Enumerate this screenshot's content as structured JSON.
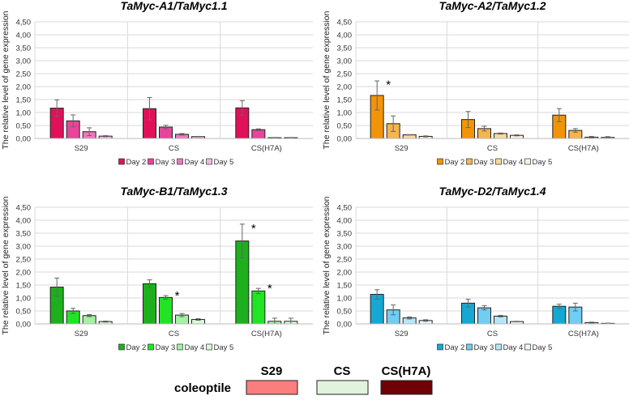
{
  "chart_data": [
    {
      "type": "bar",
      "title": "TaMyc-A1/TaMyc1.1",
      "ylabel": "The relative level of gene expression",
      "ylim": [
        0,
        4.5
      ],
      "yticks": [
        "0,00",
        "0,50",
        "1,00",
        "1,50",
        "2,00",
        "2,50",
        "3,00",
        "3,50",
        "4,00",
        "4,50"
      ],
      "categories": [
        "S29",
        "CS",
        "CS(H7A)"
      ],
      "series": [
        {
          "name": "Day 2",
          "color": "#e2105a",
          "values": [
            1.17,
            1.15,
            1.18
          ],
          "errors": [
            0.32,
            0.43,
            0.28
          ]
        },
        {
          "name": "Day 3",
          "color": "#e8449a",
          "values": [
            0.68,
            0.44,
            0.34
          ],
          "errors": [
            0.23,
            0.07,
            0.03
          ]
        },
        {
          "name": "Day 4",
          "color": "#ef78bf",
          "values": [
            0.26,
            0.16,
            0.03
          ],
          "errors": [
            0.15,
            0.03,
            0.01
          ]
        },
        {
          "name": "Day 5",
          "color": "#f5b8dc",
          "values": [
            0.09,
            0.07,
            0.03
          ],
          "errors": [
            0.02,
            0.01,
            0.01
          ]
        }
      ],
      "significance": []
    },
    {
      "type": "bar",
      "title": "TaMyc-A2/TaMyc1.2",
      "ylabel": "The relative level of gene expression",
      "ylim": [
        0,
        4.5
      ],
      "yticks": [
        "0,00",
        "0,50",
        "1,00",
        "1,50",
        "2,00",
        "2,50",
        "3,00",
        "3,50",
        "4,00",
        "4,50"
      ],
      "categories": [
        "S29",
        "CS",
        "CS(H7A)"
      ],
      "series": [
        {
          "name": "Day 2",
          "color": "#f29408",
          "values": [
            1.66,
            0.73,
            0.9
          ],
          "errors": [
            0.56,
            0.31,
            0.25
          ]
        },
        {
          "name": "Day 3",
          "color": "#f5b54e",
          "values": [
            0.57,
            0.38,
            0.31
          ],
          "errors": [
            0.3,
            0.09,
            0.07
          ]
        },
        {
          "name": "Day 4",
          "color": "#fbd89e",
          "values": [
            0.14,
            0.19,
            0.05
          ],
          "errors": [
            0.01,
            0.02,
            0.03
          ]
        },
        {
          "name": "Day 5",
          "color": "#fdf1de",
          "values": [
            0.08,
            0.12,
            0.04
          ],
          "errors": [
            0.02,
            0.02,
            0.03
          ]
        }
      ],
      "significance": [
        {
          "series": 0,
          "category": 0,
          "mark": "*"
        }
      ]
    },
    {
      "type": "bar",
      "title": "TaMyc-B1/TaMyc1.3",
      "ylabel": "The relative level of gene expression",
      "ylim": [
        0,
        4.5
      ],
      "yticks": [
        "0,00",
        "0,50",
        "1,00",
        "1,50",
        "2,00",
        "2,50",
        "3,00",
        "3,50",
        "4,00",
        "4,50"
      ],
      "categories": [
        "S29",
        "CS",
        "CS(H7A)"
      ],
      "series": [
        {
          "name": "Day 2",
          "color": "#1cb01c",
          "values": [
            1.42,
            1.55,
            3.2
          ],
          "errors": [
            0.35,
            0.15,
            0.65
          ]
        },
        {
          "name": "Day 3",
          "color": "#22e422",
          "values": [
            0.5,
            1.02,
            1.27
          ],
          "errors": [
            0.1,
            0.07,
            0.1
          ]
        },
        {
          "name": "Day 4",
          "color": "#a2f2a2",
          "values": [
            0.32,
            0.34,
            0.1
          ],
          "errors": [
            0.04,
            0.06,
            0.12
          ]
        },
        {
          "name": "Day 5",
          "color": "#d9f9d9",
          "values": [
            0.09,
            0.17,
            0.1
          ],
          "errors": [
            0.02,
            0.03,
            0.12
          ]
        }
      ],
      "significance": [
        {
          "series": 1,
          "category": 1,
          "mark": "*"
        },
        {
          "series": 0,
          "category": 2,
          "mark": "*"
        },
        {
          "series": 1,
          "category": 2,
          "mark": "*"
        }
      ]
    },
    {
      "type": "bar",
      "title": "TaMyc-D2/TaMyc1.4",
      "ylabel": "The relative level of gene expression",
      "ylim": [
        0,
        4.5
      ],
      "yticks": [
        "0,00",
        "0,50",
        "1,00",
        "1,50",
        "2,00",
        "2,50",
        "3,00",
        "3,50",
        "4,00",
        "4,50"
      ],
      "categories": [
        "S29",
        "CS",
        "CS(H7A)"
      ],
      "series": [
        {
          "name": "Day 2",
          "color": "#14a8d2",
          "values": [
            1.14,
            0.8,
            0.68
          ],
          "errors": [
            0.18,
            0.15,
            0.08
          ]
        },
        {
          "name": "Day 3",
          "color": "#70cdf3",
          "values": [
            0.54,
            0.62,
            0.65
          ],
          "errors": [
            0.19,
            0.08,
            0.15
          ]
        },
        {
          "name": "Day 4",
          "color": "#b6e5f8",
          "values": [
            0.23,
            0.3,
            0.05
          ],
          "errors": [
            0.04,
            0.03,
            0.02
          ]
        },
        {
          "name": "Day 5",
          "color": "#e9f6fc",
          "values": [
            0.13,
            0.09,
            0.02
          ],
          "errors": [
            0.03,
            0.01,
            0.01
          ]
        }
      ],
      "significance": []
    }
  ],
  "tissue_legend": {
    "row_label": "coleoptile",
    "items": [
      {
        "label": "S29",
        "color": "#fa7e7e"
      },
      {
        "label": "CS",
        "color": "#e1f3dc"
      },
      {
        "label": "CS(H7A)",
        "color": "#6e0006"
      }
    ]
  }
}
